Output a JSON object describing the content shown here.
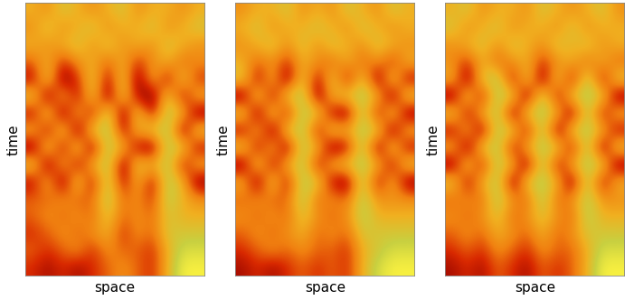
{
  "chart_data": [
    {
      "type": "heatmap",
      "x_label": "space",
      "y_label": "time",
      "tick_labels": false,
      "color_range": [
        0,
        9
      ],
      "cells": [
        [
          6,
          5,
          7,
          6,
          5,
          6,
          7,
          5,
          6,
          6,
          5,
          6
        ],
        [
          5,
          7,
          5,
          6,
          7,
          5,
          6,
          6,
          7,
          5,
          6,
          7
        ],
        [
          6,
          5,
          6,
          7,
          5,
          7,
          5,
          6,
          5,
          7,
          6,
          5
        ],
        [
          4,
          6,
          3,
          5,
          6,
          4,
          6,
          3,
          5,
          6,
          4,
          5
        ],
        [
          2,
          7,
          1,
          3,
          7,
          2,
          7,
          1,
          6,
          2,
          7,
          3
        ],
        [
          7,
          1,
          6,
          2,
          7,
          1,
          7,
          2,
          1,
          7,
          2,
          6
        ],
        [
          2,
          7,
          1,
          6,
          2,
          8,
          1,
          7,
          2,
          8,
          6,
          1
        ],
        [
          6,
          2,
          7,
          1,
          7,
          8,
          2,
          6,
          7,
          8,
          1,
          7
        ],
        [
          1,
          7,
          2,
          7,
          1,
          8,
          6,
          2,
          1,
          8,
          7,
          2
        ],
        [
          7,
          1,
          6,
          2,
          6,
          8,
          1,
          7,
          6,
          8,
          2,
          6
        ],
        [
          2,
          6,
          1,
          7,
          2,
          8,
          2,
          6,
          2,
          8,
          6,
          1
        ],
        [
          4,
          4,
          5,
          4,
          4,
          8,
          4,
          5,
          3,
          8,
          6,
          5
        ],
        [
          4,
          5,
          4,
          5,
          4,
          7,
          4,
          5,
          4,
          7,
          6,
          6
        ],
        [
          3,
          4,
          5,
          4,
          5,
          6,
          3,
          5,
          4,
          7,
          7,
          7
        ],
        [
          4,
          3,
          4,
          5,
          3,
          5,
          4,
          4,
          3,
          6,
          8,
          8
        ],
        [
          3,
          2,
          3,
          2,
          3,
          4,
          5,
          4,
          3,
          6,
          9,
          9
        ]
      ]
    },
    {
      "type": "heatmap",
      "x_label": "space",
      "y_label": "time",
      "tick_labels": false,
      "color_range": [
        0,
        9
      ],
      "cells": [
        [
          5,
          6,
          6,
          7,
          5,
          6,
          5,
          7,
          6,
          5,
          7,
          6
        ],
        [
          6,
          7,
          5,
          6,
          6,
          7,
          6,
          5,
          7,
          6,
          5,
          6
        ],
        [
          5,
          6,
          7,
          5,
          7,
          5,
          7,
          6,
          5,
          7,
          6,
          5
        ],
        [
          6,
          4,
          5,
          3,
          6,
          5,
          4,
          6,
          4,
          5,
          3,
          6
        ],
        [
          7,
          2,
          6,
          1,
          7,
          2,
          7,
          2,
          7,
          1,
          7,
          2
        ],
        [
          1,
          7,
          2,
          7,
          8,
          1,
          6,
          7,
          8,
          6,
          1,
          7
        ],
        [
          7,
          1,
          7,
          2,
          8,
          7,
          2,
          1,
          8,
          2,
          7,
          1
        ],
        [
          2,
          6,
          1,
          7,
          8,
          2,
          7,
          6,
          8,
          7,
          1,
          6
        ],
        [
          7,
          2,
          6,
          1,
          8,
          6,
          1,
          2,
          8,
          1,
          7,
          2
        ],
        [
          1,
          7,
          2,
          6,
          8,
          2,
          6,
          7,
          8,
          6,
          2,
          7
        ],
        [
          6,
          1,
          7,
          2,
          8,
          7,
          2,
          1,
          8,
          2,
          6,
          1
        ],
        [
          4,
          5,
          4,
          4,
          8,
          4,
          5,
          4,
          8,
          5,
          5,
          5
        ],
        [
          5,
          4,
          5,
          4,
          7,
          5,
          4,
          5,
          8,
          6,
          6,
          6
        ],
        [
          4,
          5,
          4,
          5,
          6,
          4,
          5,
          4,
          7,
          7,
          7,
          7
        ],
        [
          3,
          4,
          5,
          4,
          5,
          4,
          4,
          3,
          6,
          7,
          8,
          8
        ],
        [
          2,
          3,
          2,
          3,
          4,
          3,
          4,
          3,
          6,
          8,
          9,
          9
        ]
      ]
    },
    {
      "type": "heatmap",
      "x_label": "space",
      "y_label": "time",
      "tick_labels": false,
      "color_range": [
        0,
        9
      ],
      "cells": [
        [
          6,
          7,
          5,
          6,
          6,
          5,
          7,
          6,
          5,
          6,
          7,
          5
        ],
        [
          7,
          5,
          6,
          7,
          5,
          6,
          6,
          5,
          7,
          5,
          6,
          6
        ],
        [
          5,
          6,
          7,
          5,
          7,
          6,
          5,
          7,
          6,
          7,
          5,
          6
        ],
        [
          5,
          3,
          6,
          4,
          5,
          6,
          3,
          5,
          6,
          4,
          6,
          4
        ],
        [
          6,
          1,
          7,
          8,
          2,
          7,
          1,
          7,
          2,
          8,
          2,
          7
        ],
        [
          1,
          7,
          2,
          8,
          7,
          1,
          8,
          2,
          7,
          8,
          7,
          1
        ],
        [
          7,
          2,
          6,
          8,
          1,
          7,
          8,
          6,
          1,
          8,
          2,
          6
        ],
        [
          2,
          6,
          1,
          8,
          7,
          2,
          8,
          1,
          7,
          8,
          6,
          2
        ],
        [
          6,
          1,
          7,
          8,
          2,
          6,
          8,
          7,
          2,
          8,
          1,
          7
        ],
        [
          1,
          7,
          2,
          8,
          6,
          1,
          8,
          2,
          6,
          8,
          7,
          1
        ],
        [
          7,
          2,
          6,
          8,
          1,
          7,
          8,
          6,
          1,
          8,
          2,
          6
        ],
        [
          4,
          5,
          4,
          8,
          5,
          4,
          8,
          4,
          5,
          8,
          5,
          5
        ],
        [
          5,
          4,
          5,
          7,
          4,
          5,
          7,
          5,
          4,
          8,
          6,
          6
        ],
        [
          4,
          5,
          4,
          6,
          5,
          4,
          6,
          4,
          5,
          7,
          7,
          7
        ],
        [
          3,
          4,
          3,
          5,
          4,
          3,
          5,
          4,
          4,
          6,
          8,
          8
        ],
        [
          2,
          3,
          2,
          4,
          3,
          2,
          4,
          3,
          4,
          6,
          9,
          9
        ]
      ]
    }
  ]
}
